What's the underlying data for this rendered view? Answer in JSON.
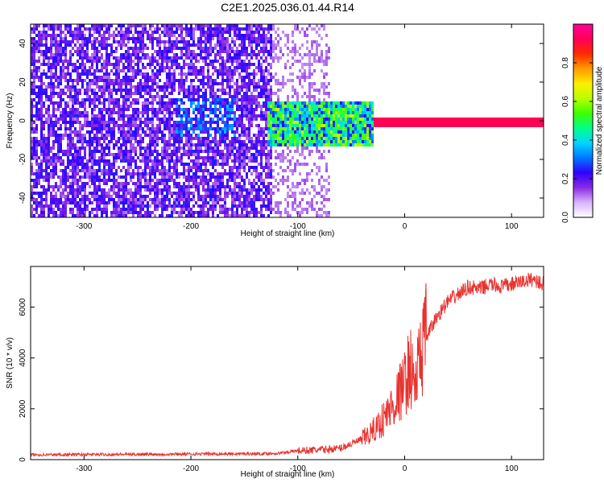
{
  "title": "C2E1.2025.036.01.44.R14",
  "colors": {
    "snr_line": "#e8322e",
    "axis": "#000000",
    "spectrogram_low": "#8a2be2",
    "spectrogram_high": "#ff1a1a"
  },
  "colorbar_palette": [
    "#ffffff",
    "#d9b3ff",
    "#8a2be2",
    "#3000ff",
    "#0077ff",
    "#00d6ff",
    "#00ff8a",
    "#3cff00",
    "#b8ff00",
    "#ffee00",
    "#ff9a00",
    "#ff2a00",
    "#ff005a",
    "#ff0099"
  ],
  "chart_data": [
    {
      "type": "heatmap",
      "title": "",
      "xlabel": "Height of straight line (km)",
      "ylabel": "Frequency (Hz)",
      "xlim": [
        -350,
        130
      ],
      "ylim": [
        -50,
        50
      ],
      "xticks": [
        -300,
        -200,
        -100,
        0,
        100
      ],
      "yticks": [
        -40,
        -20,
        0,
        20,
        40
      ],
      "colorbar": {
        "label": "Normalized spectral amplitude",
        "range": [
          0,
          1
        ],
        "ticks": [
          0.0,
          0.2,
          0.4,
          0.6,
          0.8
        ]
      },
      "regions": [
        {
          "x": [
            -350,
            -125
          ],
          "freq": [
            -50,
            50
          ],
          "amplitude": 0.15
        },
        {
          "x": [
            -125,
            -70
          ],
          "freq": [
            -50,
            50
          ],
          "amplitude": 0.08
        },
        {
          "x": [
            -215,
            -160
          ],
          "freq": [
            -7,
            13
          ],
          "amplitude": 0.22
        },
        {
          "x": [
            -130,
            -30
          ],
          "freq": [
            -12,
            10
          ],
          "amplitude": 0.45
        },
        {
          "x": [
            -30,
            130
          ],
          "freq": [
            -2,
            2
          ],
          "amplitude": 0.92
        }
      ]
    },
    {
      "type": "line",
      "title": "",
      "xlabel": "Height of straight line (km)",
      "ylabel": "SNR (10 * v/v)",
      "xlim": [
        -350,
        130
      ],
      "ylim": [
        0,
        7600
      ],
      "xticks": [
        -300,
        -200,
        -100,
        0,
        100
      ],
      "yticks": [
        0,
        2000,
        4000,
        6000
      ],
      "series": [
        {
          "x": [
            -350,
            -300,
            -250,
            -200,
            -150,
            -120,
            -100,
            -80,
            -60,
            -40,
            -30,
            -20,
            -10,
            0,
            5,
            10,
            15,
            20,
            30,
            40,
            50,
            60,
            70,
            80,
            90,
            100,
            110,
            120,
            130
          ],
          "values": [
            190,
            200,
            210,
            220,
            230,
            240,
            350,
            380,
            450,
            800,
            1100,
            1600,
            2200,
            3000,
            3700,
            2900,
            4200,
            4800,
            5600,
            6200,
            6500,
            6800,
            6700,
            6900,
            6800,
            6900,
            7000,
            7100,
            6900
          ]
        }
      ]
    }
  ]
}
